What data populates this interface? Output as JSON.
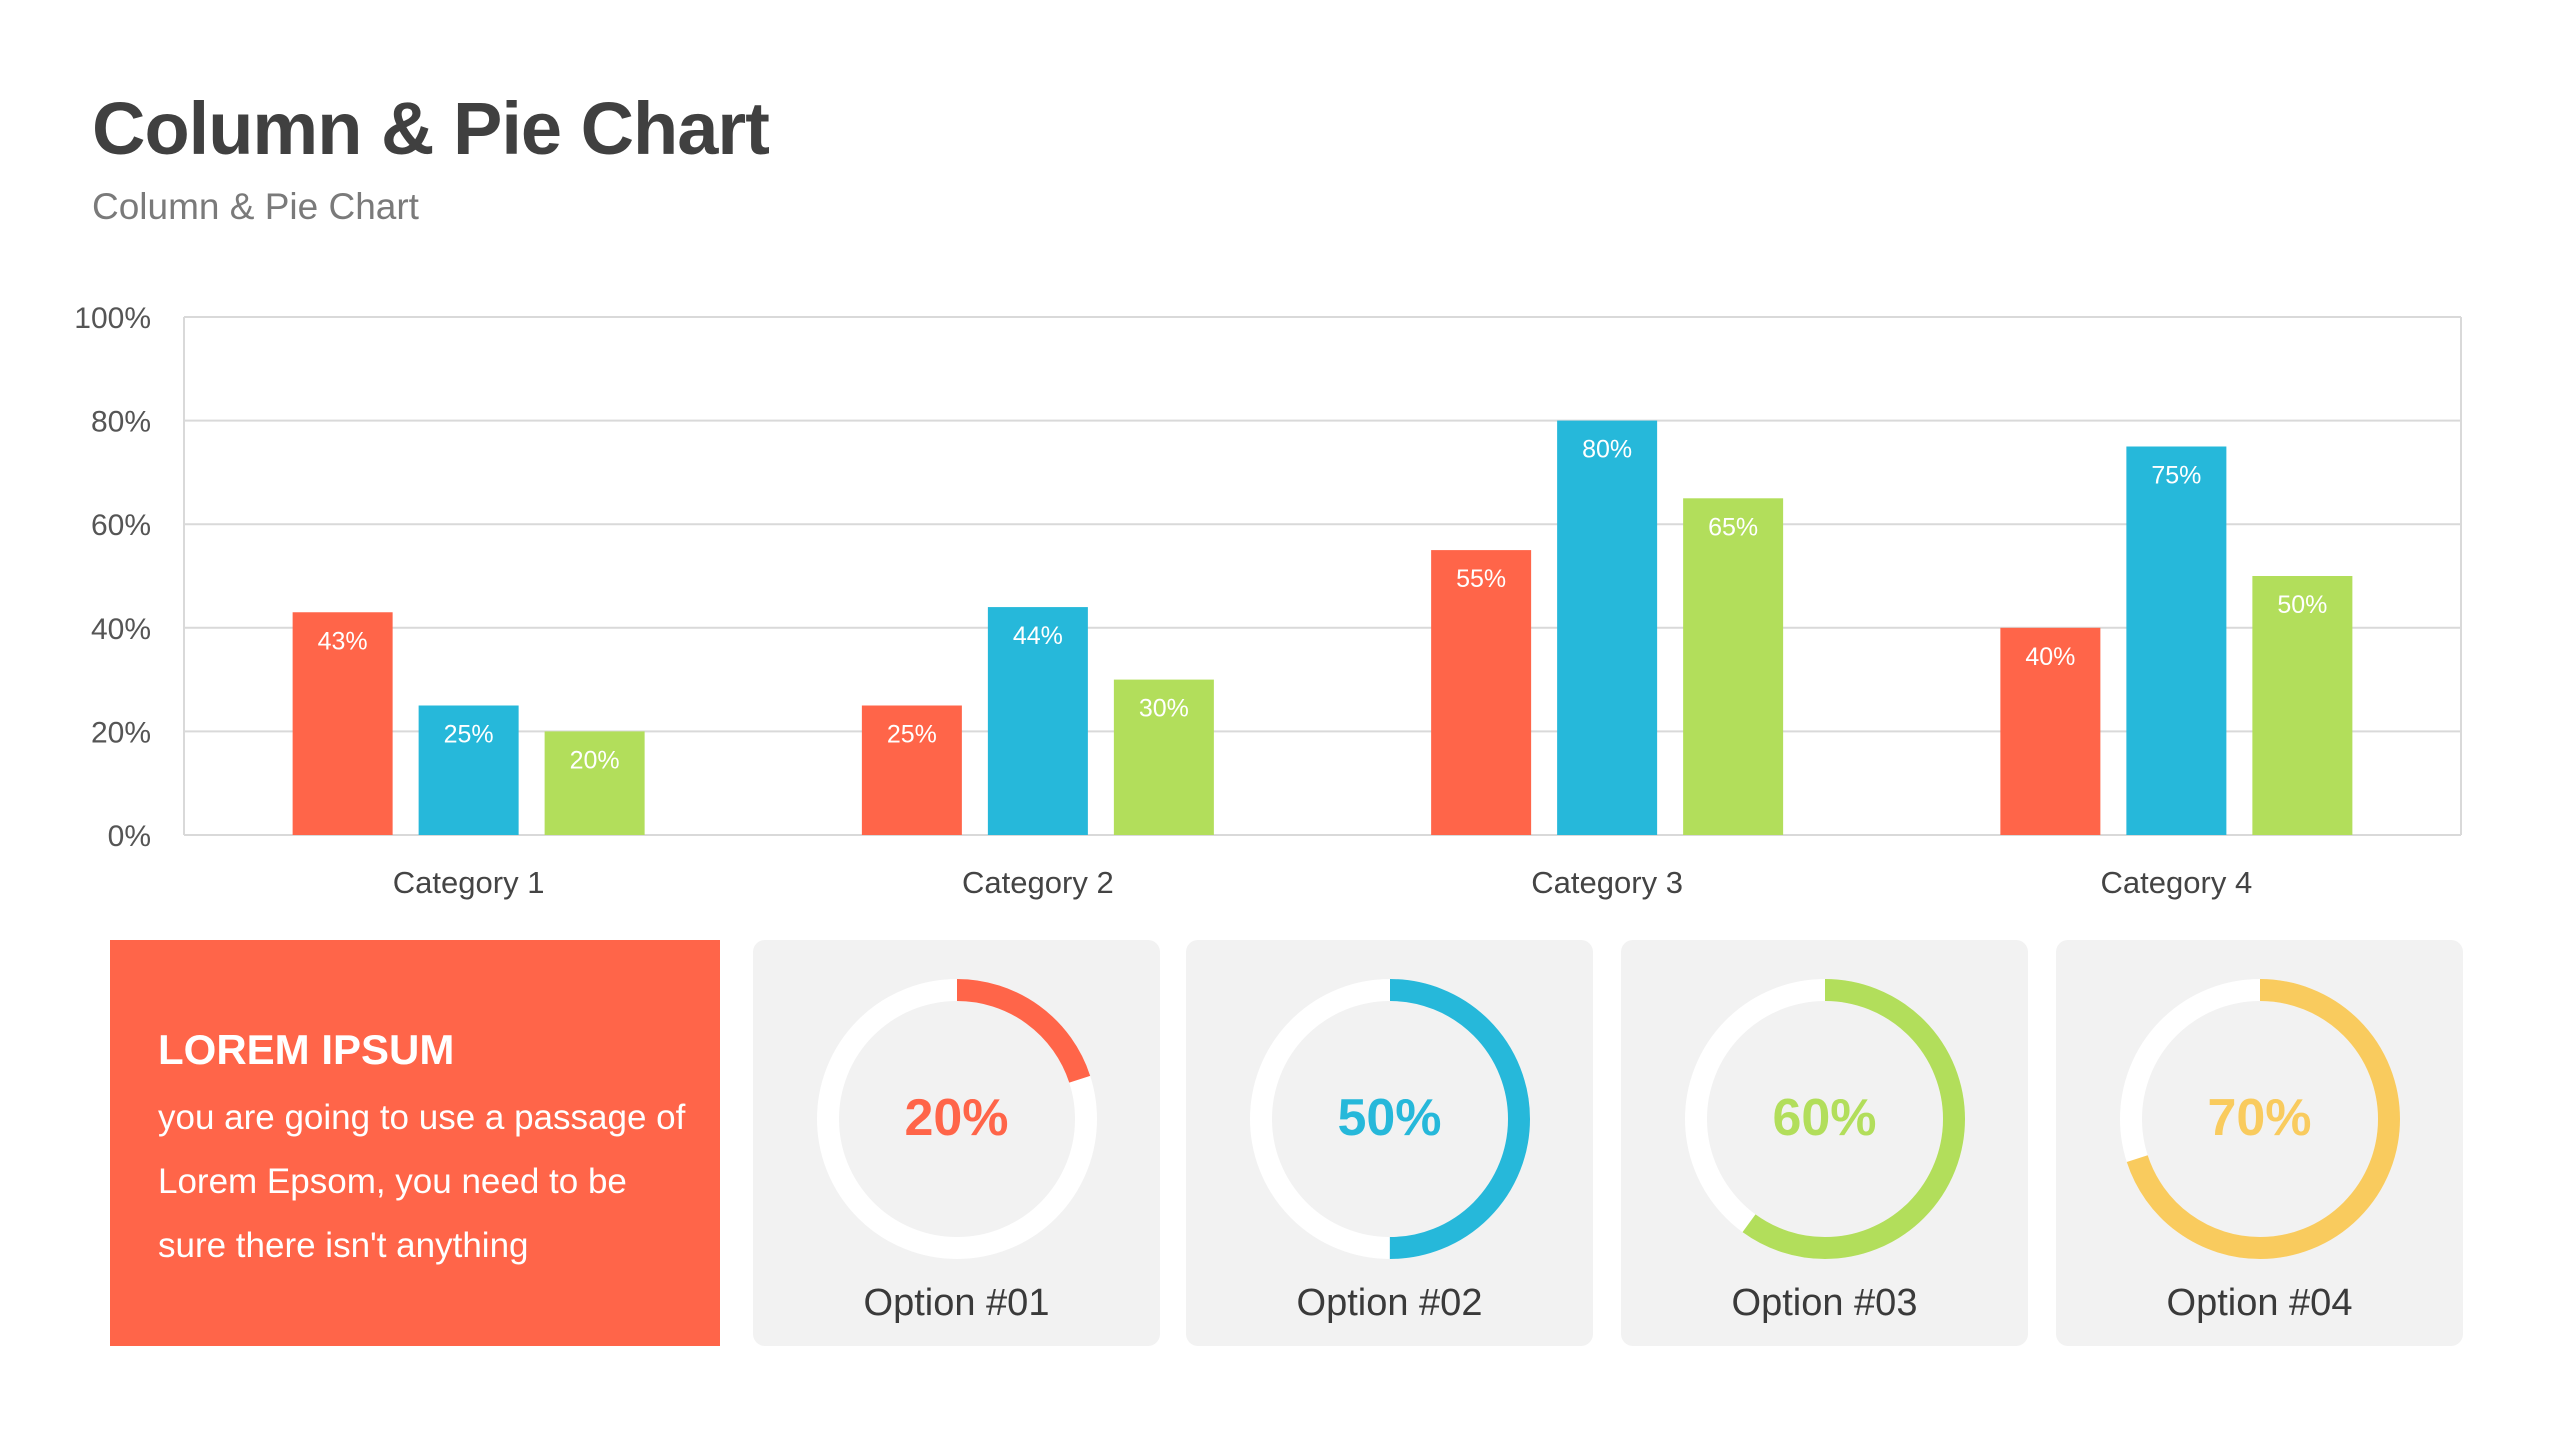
{
  "header": {
    "title": "Column & Pie Chart",
    "subtitle": "Column & Pie Chart"
  },
  "colors": {
    "red": "#FF6549",
    "blue": "#26B8DA",
    "green": "#B2DE5B",
    "yellow": "#F9CB5E",
    "title": "#404040"
  },
  "chart_data": [
    {
      "type": "bar",
      "categories": [
        "Category 1",
        "Category 2",
        "Category 3",
        "Category 4"
      ],
      "series": [
        {
          "values": [
            43,
            25,
            55,
            40
          ],
          "color": "#FF6549"
        },
        {
          "values": [
            25,
            44,
            80,
            75
          ],
          "color": "#26B8DA"
        },
        {
          "values": [
            20,
            30,
            65,
            50
          ],
          "color": "#B2DE5B"
        }
      ],
      "data_labels": [
        [
          "43%",
          "25%",
          "55%",
          "40%"
        ],
        [
          "25%",
          "44%",
          "80%",
          "75%"
        ],
        [
          "20%",
          "30%",
          "65%",
          "50%"
        ]
      ],
      "yticks": [
        "0%",
        "20%",
        "40%",
        "60%",
        "80%",
        "100%"
      ],
      "ylim": [
        0,
        100
      ],
      "grid": true
    },
    {
      "type": "pie",
      "items": [
        {
          "label": "Option #01",
          "value": 20,
          "text": "20%",
          "color": "#FF6549"
        },
        {
          "label": "Option #02",
          "value": 50,
          "text": "50%",
          "color": "#26B8DA"
        },
        {
          "label": "Option #03",
          "value": 60,
          "text": "60%",
          "color": "#B2DE5B"
        },
        {
          "label": "Option #04",
          "value": 70,
          "text": "70%",
          "color": "#F9CB5E"
        }
      ]
    }
  ],
  "textbox": {
    "title": "LOREM IPSUM",
    "body": "you are going to use a passage of Lorem Epsom, you need to be sure there isn't anything"
  }
}
